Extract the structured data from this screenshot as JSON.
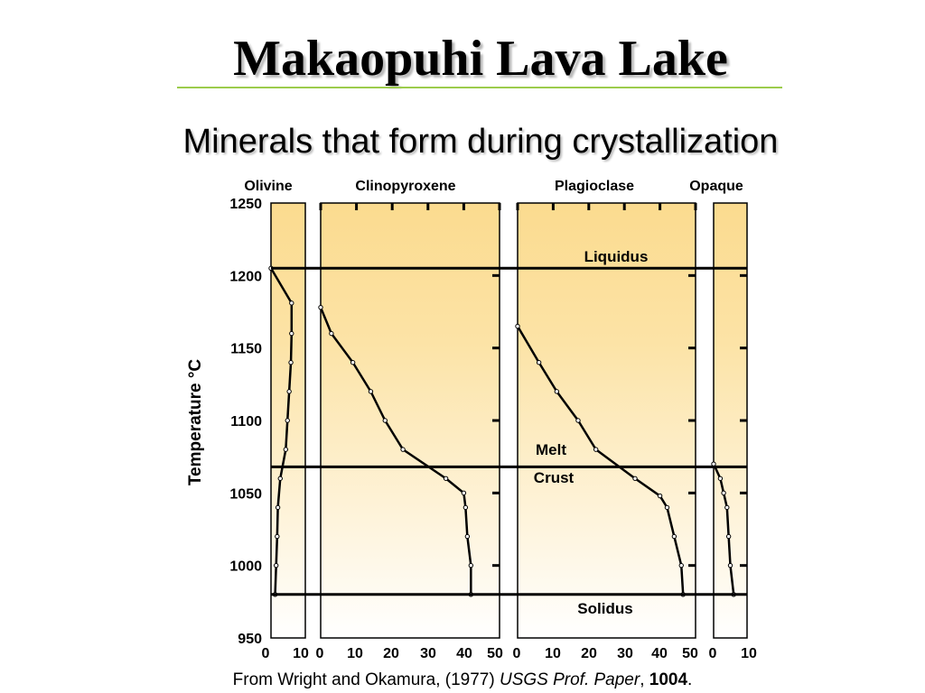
{
  "page": {
    "title": "Makaopuhi Lava Lake",
    "subtitle": "Minerals that form during crystallization"
  },
  "caption": {
    "prefix": "From Wright and Okamura, (1977) ",
    "journal": "USGS Prof. Paper",
    "sep": ", ",
    "volume": "1004",
    "end": "."
  },
  "colors": {
    "fill_top": "#fbdb8f",
    "fill_bottom": "#ffffff",
    "line": "#000000",
    "title_rule": "#9ccc4c"
  },
  "chart_data": {
    "type": "line",
    "ylabel": "Temperature °C",
    "ylim": [
      950,
      1250
    ],
    "yticks": [
      950,
      1000,
      1050,
      1100,
      1150,
      1200,
      1250
    ],
    "horizontal_lines": [
      {
        "name": "Liquidus",
        "y": 1205
      },
      {
        "name": "Melt / Crust",
        "y": 1068
      },
      {
        "name": "Solidus",
        "y": 980
      }
    ],
    "annotations": [
      "Liquidus",
      "Melt",
      "Crust",
      "Solidus"
    ],
    "panels": [
      {
        "label": "Olivine",
        "xlim": [
          0,
          10
        ],
        "xtick_labels": [
          "0",
          "10"
        ],
        "points": [
          [
            0,
            1205
          ],
          [
            6,
            1181
          ],
          [
            6,
            1160
          ],
          [
            5.8,
            1140
          ],
          [
            5.3,
            1120
          ],
          [
            4.8,
            1100
          ],
          [
            4.3,
            1080
          ],
          [
            2.7,
            1060
          ],
          [
            2,
            1040
          ],
          [
            1.8,
            1020
          ],
          [
            1.5,
            1000
          ],
          [
            1.2,
            980
          ]
        ]
      },
      {
        "label": "Clinopyroxene",
        "xlim": [
          0,
          50
        ],
        "xtick_labels": [
          "0",
          "10",
          "20",
          "30",
          "40",
          "50"
        ],
        "points": [
          [
            0,
            1178
          ],
          [
            3,
            1160
          ],
          [
            9,
            1140
          ],
          [
            14,
            1120
          ],
          [
            18,
            1100
          ],
          [
            23,
            1080
          ],
          [
            35,
            1060
          ],
          [
            40,
            1050
          ],
          [
            40.5,
            1040
          ],
          [
            41,
            1020
          ],
          [
            42,
            1000
          ],
          [
            42,
            980
          ]
        ]
      },
      {
        "label": "Plagioclase",
        "xlim": [
          0,
          50
        ],
        "xtick_labels": [
          "0",
          "10",
          "20",
          "30",
          "40",
          "50"
        ],
        "points": [
          [
            0,
            1165
          ],
          [
            6,
            1140
          ],
          [
            11,
            1120
          ],
          [
            17,
            1100
          ],
          [
            22,
            1080
          ],
          [
            33,
            1060
          ],
          [
            40,
            1048
          ],
          [
            42,
            1040
          ],
          [
            44,
            1020
          ],
          [
            46,
            1000
          ],
          [
            46.5,
            980
          ]
        ]
      },
      {
        "label": "Opaque",
        "xlim": [
          0,
          10
        ],
        "xtick_labels": [
          "0",
          "10"
        ],
        "points": [
          [
            0,
            1070
          ],
          [
            2,
            1060
          ],
          [
            3,
            1050
          ],
          [
            4,
            1040
          ],
          [
            4.5,
            1020
          ],
          [
            5,
            1000
          ],
          [
            6,
            980
          ]
        ]
      }
    ]
  }
}
